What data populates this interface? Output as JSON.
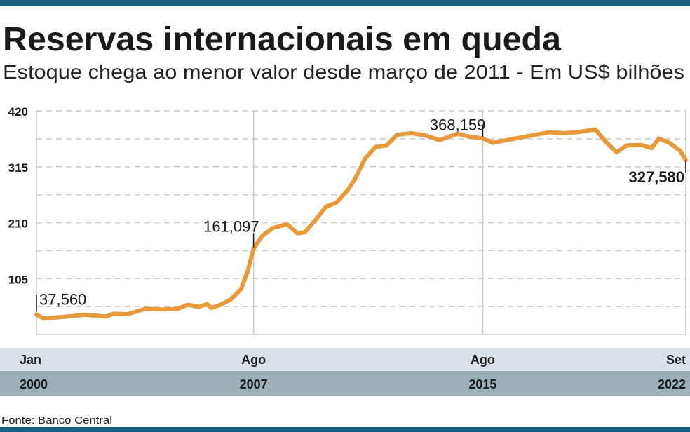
{
  "header": {
    "title": "Reservas internacionais em queda",
    "subtitle": "Estoque chega ao menor valor desde março de 2011 - Em US$ bilhões"
  },
  "footer": {
    "source": "Fonte: Banco Central"
  },
  "colors": {
    "line": "#e8993a",
    "top_bar": "#17607e",
    "band_light": "#d9e2e8",
    "band_dark": "#9db0b8"
  },
  "chart_data": {
    "type": "line",
    "title": "Reservas internacionais em queda",
    "ylabel": "US$ bilhões",
    "ylim": [
      0,
      420
    ],
    "xlim": [
      2000.0,
      2022.67
    ],
    "yticks": [
      "105",
      "210",
      "315",
      "420"
    ],
    "ytick_values": [
      105,
      210,
      315,
      420
    ],
    "grid": true,
    "xticks": [
      {
        "x": 2000.0,
        "month": "Jan",
        "year": "2000"
      },
      {
        "x": 2007.58,
        "month": "Ago",
        "year": "2007"
      },
      {
        "x": 2015.58,
        "month": "Ago",
        "year": "2015"
      },
      {
        "x": 2022.67,
        "month": "Set",
        "year": "2022"
      }
    ],
    "annotations": [
      {
        "x": 2000.0,
        "y": 37.56,
        "label": "37,560"
      },
      {
        "x": 2007.58,
        "y": 161.097,
        "label": "161,097"
      },
      {
        "x": 2015.58,
        "y": 368.159,
        "label": "368,159"
      },
      {
        "x": 2022.67,
        "y": 327.58,
        "label": "327,580"
      }
    ],
    "series": [
      {
        "name": "Reservas internacionais",
        "x": [
          2000.0,
          2000.25,
          2000.94,
          2001.69,
          2002.43,
          2002.68,
          2003.17,
          2003.79,
          2004.41,
          2004.91,
          2005.28,
          2005.65,
          2005.95,
          2006.1,
          2006.39,
          2006.77,
          2007.14,
          2007.38,
          2007.58,
          2007.88,
          2008.25,
          2008.75,
          2009.12,
          2009.37,
          2009.74,
          2010.11,
          2010.48,
          2010.85,
          2011.1,
          2011.47,
          2011.84,
          2012.22,
          2012.59,
          2013.08,
          2013.58,
          2014.07,
          2014.7,
          2015.07,
          2015.58,
          2015.93,
          2016.42,
          2016.91,
          2017.41,
          2017.9,
          2018.4,
          2018.89,
          2019.51,
          2019.88,
          2020.25,
          2020.61,
          2021.11,
          2021.48,
          2021.73,
          2022.1,
          2022.47,
          2022.67
        ],
        "y": [
          37.56,
          30,
          33,
          37,
          34,
          39,
          38,
          48,
          47,
          48,
          56,
          52,
          57,
          50,
          55,
          65,
          85,
          120,
          161.097,
          185,
          200,
          207,
          190,
          192,
          215,
          240,
          248,
          270,
          290,
          330,
          352,
          355,
          375,
          378,
          374,
          365,
          377,
          372,
          368.159,
          360,
          365,
          370,
          375,
          380,
          378,
          380,
          385,
          362,
          342,
          355,
          356,
          350,
          368,
          360,
          345,
          327.58
        ]
      }
    ]
  }
}
